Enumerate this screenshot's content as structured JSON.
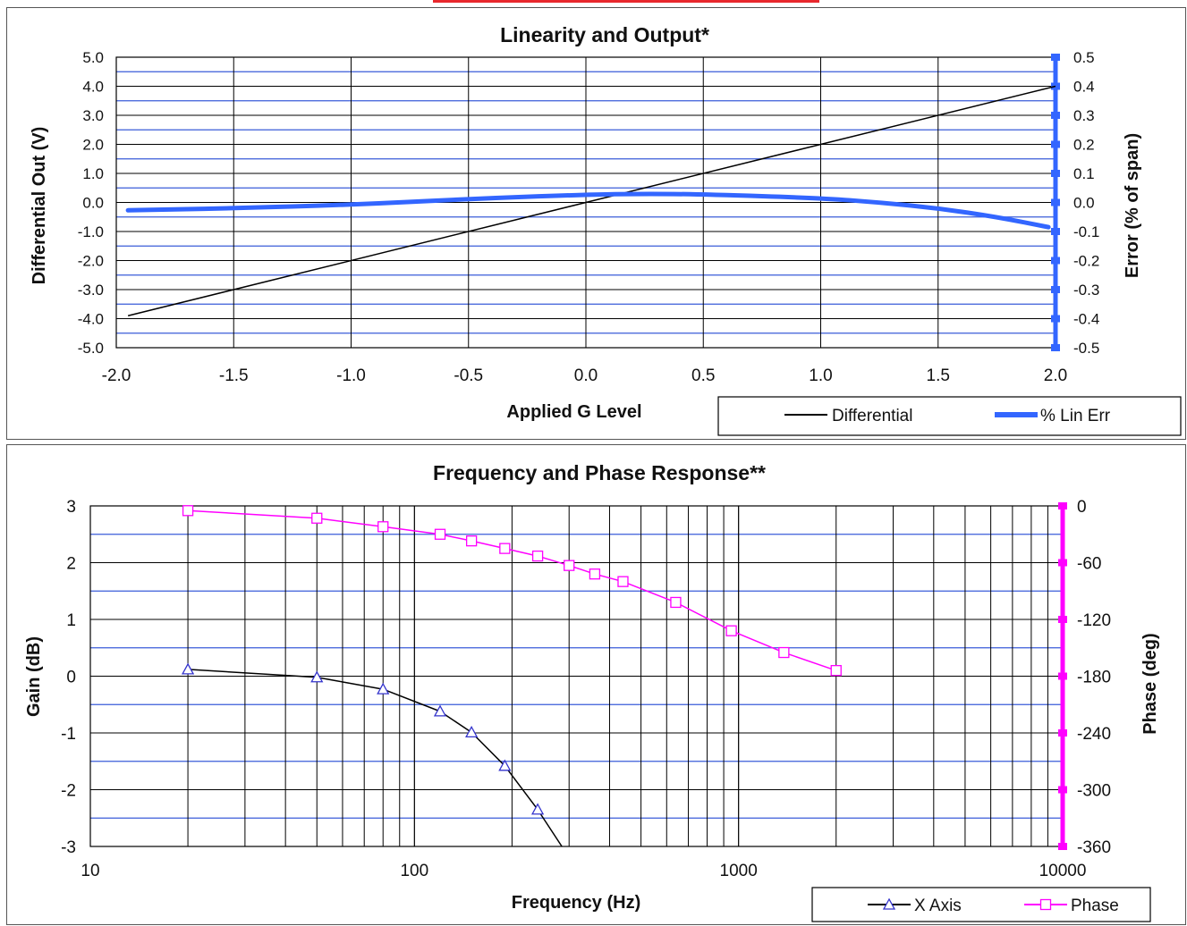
{
  "chart_data": [
    {
      "type": "line",
      "title": "Linearity and Output*",
      "xlabel": "Applied G Level",
      "ylabel": "Differential Out (V)",
      "y2label": "Error (% of span)",
      "xlim": [
        -2.0,
        2.0
      ],
      "ylim": [
        -5.0,
        5.0
      ],
      "y2lim": [
        -0.5,
        0.5
      ],
      "x_ticks": [
        "-2.0",
        "-1.5",
        "-1.0",
        "-0.5",
        "0.0",
        "0.5",
        "1.0",
        "1.5",
        "2.0"
      ],
      "y_ticks": [
        "5.0",
        "4.0",
        "3.0",
        "2.0",
        "1.0",
        "0.0",
        "-1.0",
        "-2.0",
        "-3.0",
        "-4.0",
        "-5.0"
      ],
      "y2_ticks": [
        "0.5",
        "0.4",
        "0.3",
        "0.2",
        "0.1",
        "0.0",
        "-0.1",
        "-0.2",
        "-0.3",
        "-0.4",
        "-0.5"
      ],
      "grid": true,
      "legend_position": "bottom-right",
      "series": [
        {
          "name": "Differential",
          "axis": "left",
          "color": "#000000",
          "x": [
            -1.95,
            2.0
          ],
          "y": [
            -3.9,
            4.0
          ]
        },
        {
          "name": "% Lin Err",
          "axis": "right",
          "color": "#3366ff",
          "x": [
            -1.95,
            -1.5,
            -1.0,
            -0.5,
            0.0,
            0.25,
            0.5,
            1.0,
            1.25,
            1.5,
            1.75,
            1.97
          ],
          "y": [
            -0.027,
            -0.02,
            -0.008,
            0.012,
            0.027,
            0.03,
            0.028,
            0.015,
            0.0,
            -0.02,
            -0.05,
            -0.085
          ]
        }
      ]
    },
    {
      "type": "line",
      "title": "Frequency and Phase Response**",
      "xlabel": "Frequency (Hz)",
      "ylabel": "Gain (dB)",
      "y2label": "Phase (deg)",
      "xscale": "log",
      "xlim": [
        10,
        10000
      ],
      "ylim": [
        -3,
        3
      ],
      "y2lim": [
        -360,
        0
      ],
      "x_ticks": [
        "10",
        "100",
        "1000",
        "10000"
      ],
      "y_ticks": [
        "3",
        "2",
        "1",
        "0",
        "-1",
        "-2",
        "-3"
      ],
      "y2_ticks": [
        "0",
        "-60",
        "-120",
        "-180",
        "-240",
        "-300",
        "-360"
      ],
      "grid": true,
      "legend_position": "bottom-right",
      "series": [
        {
          "name": "X Axis",
          "axis": "left",
          "color": "#000000",
          "marker_color": "#3333cc",
          "marker": "triangle",
          "x": [
            20,
            50,
            80,
            120,
            150,
            190,
            240
          ],
          "y": [
            0.12,
            -0.02,
            -0.23,
            -0.62,
            -0.99,
            -1.58,
            -2.35
          ],
          "curve_end": {
            "x": 285,
            "y": -3.0
          }
        },
        {
          "name": "Phase",
          "axis": "right",
          "color": "#ff00ff",
          "marker": "square",
          "x": [
            20,
            50,
            80,
            120,
            150,
            190,
            240,
            300,
            360,
            440,
            640,
            950,
            1380,
            2000
          ],
          "y": [
            -5,
            -13,
            -22,
            -30,
            -37,
            -45,
            -53,
            -63,
            -72,
            -80,
            -102,
            -132,
            -155,
            -174
          ]
        }
      ]
    }
  ]
}
